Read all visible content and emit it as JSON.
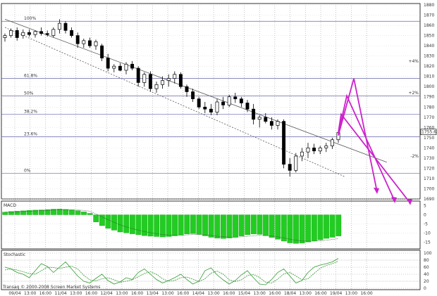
{
  "chart_data": {
    "type": "candlestick",
    "price_panel": {
      "ylim": [
        1690,
        1880
      ],
      "y_ticks": [
        "1880",
        "1870",
        "1860",
        "1850",
        "1840",
        "1830",
        "1820",
        "1810",
        "1800",
        "1790",
        "1780",
        "1770",
        "1760",
        "1750",
        "1740",
        "1730",
        "1720",
        "1710",
        "1700",
        "1690"
      ],
      "last_price_label": "1755.63",
      "fib_levels": [
        {
          "label": "100%",
          "value": 1864
        },
        {
          "label": "61.8%",
          "value": 1808
        },
        {
          "label": "50%",
          "value": 1791
        },
        {
          "label": "38.2%",
          "value": 1773
        },
        {
          "label": "23.6%",
          "value": 1751
        },
        {
          "label": "0%",
          "value": 1715
        }
      ],
      "side_labels": [
        {
          "label": "+4%",
          "value": 1825
        },
        {
          "label": "+2%",
          "value": 1794
        },
        {
          "label": "-2%",
          "value": 1732
        }
      ],
      "candles": [
        [
          1848,
          1852,
          1844,
          1850
        ],
        [
          1850,
          1857,
          1848,
          1855
        ],
        [
          1855,
          1858,
          1845,
          1848
        ],
        [
          1850,
          1856,
          1847,
          1853
        ],
        [
          1853,
          1856,
          1849,
          1851
        ],
        [
          1851,
          1855,
          1848,
          1854
        ],
        [
          1854,
          1858,
          1850,
          1852
        ],
        [
          1852,
          1855,
          1849,
          1851
        ],
        [
          1850,
          1858,
          1848,
          1856
        ],
        [
          1856,
          1866,
          1852,
          1862
        ],
        [
          1862,
          1864,
          1852,
          1855
        ],
        [
          1855,
          1858,
          1848,
          1850
        ],
        [
          1850,
          1853,
          1838,
          1842
        ],
        [
          1842,
          1847,
          1838,
          1845
        ],
        [
          1845,
          1848,
          1838,
          1840
        ],
        [
          1840,
          1846,
          1836,
          1844
        ],
        [
          1840,
          1842,
          1825,
          1828
        ],
        [
          1828,
          1832,
          1815,
          1818
        ],
        [
          1818,
          1822,
          1814,
          1820
        ],
        [
          1820,
          1823,
          1815,
          1816
        ],
        [
          1816,
          1824,
          1812,
          1822
        ],
        [
          1822,
          1825,
          1816,
          1818
        ],
        [
          1818,
          1820,
          1800,
          1804
        ],
        [
          1804,
          1814,
          1800,
          1812
        ],
        [
          1812,
          1815,
          1795,
          1798
        ],
        [
          1798,
          1805,
          1794,
          1802
        ],
        [
          1802,
          1810,
          1798,
          1806
        ],
        [
          1806,
          1812,
          1800,
          1808
        ],
        [
          1808,
          1815,
          1803,
          1812
        ],
        [
          1812,
          1814,
          1798,
          1800
        ],
        [
          1800,
          1802,
          1790,
          1795
        ],
        [
          1795,
          1798,
          1785,
          1788
        ],
        [
          1788,
          1790,
          1778,
          1780
        ],
        [
          1780,
          1785,
          1774,
          1778
        ],
        [
          1778,
          1783,
          1772,
          1775
        ],
        [
          1775,
          1788,
          1772,
          1785
        ],
        [
          1785,
          1790,
          1778,
          1782
        ],
        [
          1782,
          1792,
          1780,
          1790
        ],
        [
          1790,
          1794,
          1784,
          1788
        ],
        [
          1788,
          1790,
          1780,
          1784
        ],
        [
          1784,
          1787,
          1775,
          1778
        ],
        [
          1778,
          1783,
          1763,
          1768
        ],
        [
          1768,
          1772,
          1760,
          1770
        ],
        [
          1770,
          1774,
          1764,
          1766
        ],
        [
          1766,
          1770,
          1758,
          1762
        ],
        [
          1762,
          1768,
          1758,
          1766
        ],
        [
          1766,
          1768,
          1720,
          1724
        ],
        [
          1724,
          1730,
          1712,
          1718
        ],
        [
          1718,
          1735,
          1716,
          1732
        ],
        [
          1732,
          1740,
          1727,
          1736
        ],
        [
          1736,
          1745,
          1730,
          1740
        ],
        [
          1740,
          1744,
          1734,
          1737
        ],
        [
          1737,
          1742,
          1734,
          1740
        ],
        [
          1740,
          1745,
          1736,
          1742
        ],
        [
          1742,
          1750,
          1739,
          1748
        ],
        [
          1748,
          1756,
          1745,
          1755
        ]
      ],
      "trendlines": [
        {
          "name": "upper",
          "from": [
            0,
            1866
          ],
          "to": [
            63,
            1726
          ]
        },
        {
          "name": "lower",
          "from": [
            0,
            1858
          ],
          "to": [
            56,
            1712
          ]
        }
      ],
      "projections": {
        "color": "#cc22cc",
        "peak_prices": [
          1808,
          1791,
          1773
        ],
        "targets": [
          1697,
          1688,
          1686
        ]
      }
    },
    "macd_panel": {
      "title": "MACD",
      "ylim": [
        -18,
        6
      ],
      "y_ticks": [
        "5",
        "0",
        "-5",
        "-10",
        "-15"
      ],
      "histogram": [
        1.5,
        1.8,
        2,
        2.2,
        2.5,
        2.6,
        2.7,
        2.9,
        3.1,
        3.2,
        3.0,
        2.7,
        2.3,
        1.6,
        0.8,
        -4,
        -6,
        -7.5,
        -8.5,
        -9.5,
        -10,
        -10.5,
        -11,
        -11.5,
        -11.8,
        -12,
        -12.2,
        -12,
        -11.6,
        -11.2,
        -10.6,
        -10.4,
        -10.8,
        -11.6,
        -12.4,
        -12.9,
        -13.1,
        -12.8,
        -12.4,
        -11.7,
        -11,
        -10.6,
        -10.8,
        -11.5,
        -12.5,
        -13.5,
        -14.5,
        -15.5,
        -15.8,
        -15.6,
        -15.0,
        -14.4,
        -13.8,
        -13.0,
        -12.4,
        -11.7
      ]
    },
    "stochastic_panel": {
      "title": "Stochastic",
      "ylim": [
        0,
        100
      ],
      "y_ticks": [
        "100",
        "80",
        "60",
        "40",
        "20",
        "0"
      ],
      "k": [
        60,
        55,
        45,
        40,
        30,
        50,
        70,
        62,
        45,
        60,
        75,
        55,
        35,
        20,
        15,
        28,
        40,
        22,
        12,
        18,
        30,
        25,
        45,
        55,
        40,
        25,
        15,
        22,
        30,
        40,
        25,
        12,
        20,
        50,
        58,
        38,
        24,
        12,
        22,
        38,
        50,
        30,
        12,
        10,
        25,
        45,
        55,
        35,
        15,
        22,
        45,
        60,
        66,
        70,
        75,
        85
      ],
      "d": [
        52,
        55,
        52,
        47,
        42,
        40,
        50,
        60,
        59,
        56,
        60,
        63,
        55,
        37,
        24,
        21,
        27,
        30,
        24,
        17,
        20,
        24,
        33,
        42,
        47,
        40,
        27,
        20,
        22,
        30,
        32,
        26,
        19,
        27,
        43,
        49,
        40,
        24,
        19,
        24,
        36,
        39,
        31,
        17,
        15,
        26,
        41,
        45,
        35,
        24,
        27,
        42,
        57,
        65,
        70,
        77
      ]
    },
    "x_ticks": [
      "09/04",
      "13:00",
      "16:00",
      "11/04",
      "13:00",
      "16:00",
      "12/04",
      "13:00",
      "16:00",
      "13/04",
      "13:00",
      "16:00",
      "14/04",
      "13:00",
      "16:00",
      "15/04",
      "13:00",
      "16:00",
      "18/04",
      "13:00",
      "16:00",
      "19/04",
      "13:00",
      "16:00"
    ],
    "copyright": "Transaq © 2000-2008 Screen Market Systems"
  },
  "colors": {
    "candle_up": "#ffffff",
    "candle_down": "#000000",
    "macd_bar": "#22cc22",
    "grid": "#888888",
    "trendline": "#555555",
    "projection": "#cc22cc",
    "stoch": "#339933"
  }
}
